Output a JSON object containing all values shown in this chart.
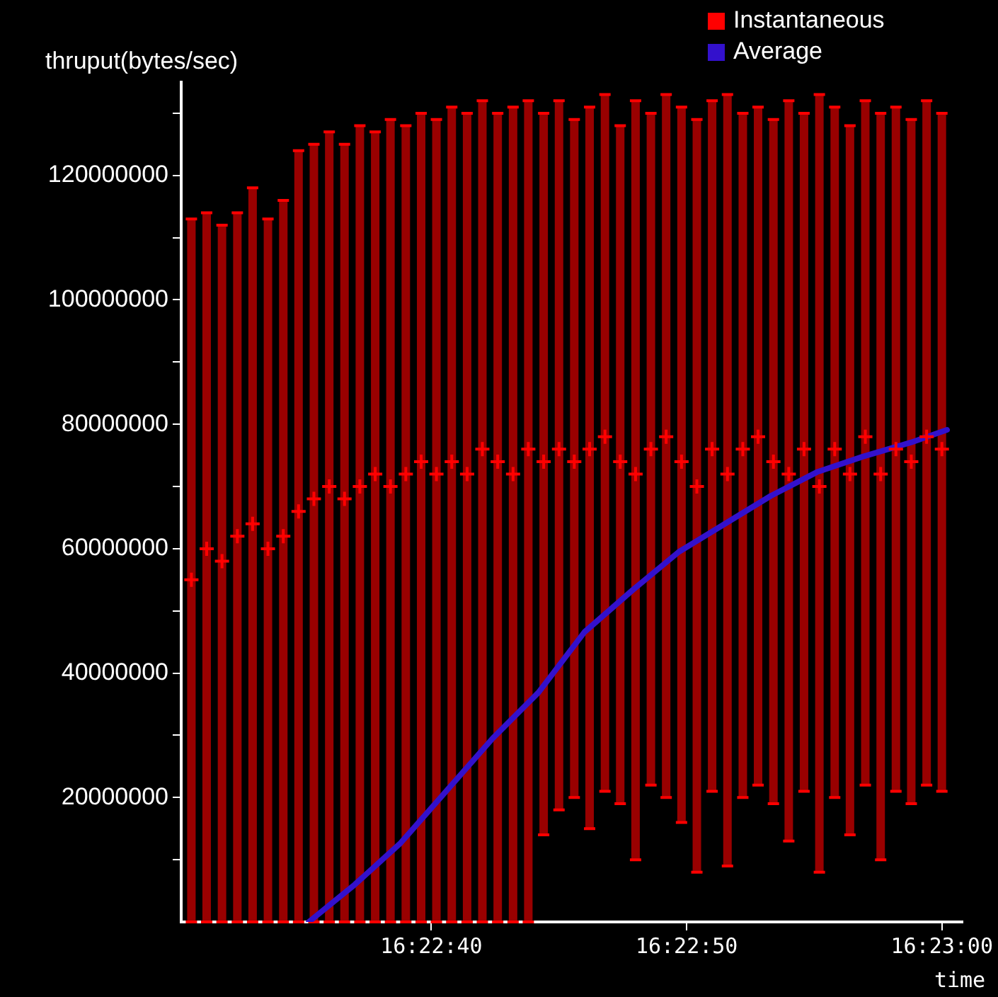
{
  "chart_data": {
    "type": "scatter",
    "xlabel": "time",
    "ylabel": "thruput(bytes/sec)",
    "legend": "top right",
    "grid": false,
    "xlim": [
      16.375056,
      16.383556
    ],
    "xticks": [
      {
        "value": 16.377778,
        "label": "16:22:40"
      },
      {
        "value": 16.380556,
        "label": "16:22:50"
      },
      {
        "value": 16.383333,
        "label": "16:23:00"
      }
    ],
    "ylim": [
      0,
      135000000
    ],
    "yticks": [
      {
        "value": 10000000,
        "label": null
      },
      20000000,
      {
        "value": 30000000,
        "label": null
      },
      40000000,
      {
        "value": 50000000,
        "label": null
      },
      60000000,
      {
        "value": 70000000,
        "label": null
      },
      80000000,
      {
        "value": 90000000,
        "label": null
      },
      100000000,
      {
        "value": 110000000,
        "label": null
      },
      120000000,
      {
        "value": 130000000,
        "label": null
      }
    ],
    "series": [
      {
        "name": "Instantaneous",
        "type": "scatter",
        "color": "#ff0000",
        "marker": "cross",
        "x": [
          16.375167,
          16.375333,
          16.3755,
          16.375667,
          16.375833,
          16.376,
          16.376167,
          16.376333,
          16.3765,
          16.376667,
          16.376833,
          16.377,
          16.377167,
          16.377333,
          16.3775,
          16.377667,
          16.377833,
          16.378,
          16.378167,
          16.378333,
          16.3785,
          16.378667,
          16.378833,
          16.379,
          16.379167,
          16.379333,
          16.3795,
          16.379667,
          16.379833,
          16.38,
          16.380167,
          16.380333,
          16.3805,
          16.380667,
          16.380833,
          16.381,
          16.381167,
          16.381333,
          16.3815,
          16.381667,
          16.381833,
          16.382,
          16.382167,
          16.382333,
          16.3825,
          16.382667,
          16.382833,
          16.383,
          16.383167,
          16.383333
        ],
        "values": [
          55000000,
          60000000,
          58000000,
          62000000,
          64000000,
          60000000,
          62000000,
          66000000,
          68000000,
          70000000,
          68000000,
          70000000,
          72000000,
          70000000,
          72000000,
          74000000,
          72000000,
          74000000,
          72000000,
          76000000,
          74000000,
          72000000,
          76000000,
          74000000,
          76000000,
          74000000,
          76000000,
          78000000,
          74000000,
          72000000,
          76000000,
          78000000,
          74000000,
          70000000,
          76000000,
          72000000,
          76000000,
          78000000,
          74000000,
          72000000,
          76000000,
          70000000,
          76000000,
          72000000,
          78000000,
          72000000,
          76000000,
          74000000,
          78000000,
          76000000
        ],
        "errors": [
          [
            0,
            113000000
          ],
          [
            0,
            114000000
          ],
          [
            0,
            112000000
          ],
          [
            0,
            114000000
          ],
          [
            0,
            118000000
          ],
          [
            0,
            113000000
          ],
          [
            0,
            116000000
          ],
          [
            0,
            124000000
          ],
          [
            0,
            125000000
          ],
          [
            0,
            127000000
          ],
          [
            0,
            125000000
          ],
          [
            0,
            128000000
          ],
          [
            0,
            127000000
          ],
          [
            0,
            129000000
          ],
          [
            0,
            128000000
          ],
          [
            0,
            130000000
          ],
          [
            0,
            129000000
          ],
          [
            0,
            131000000
          ],
          [
            0,
            130000000
          ],
          [
            0,
            132000000
          ],
          [
            0,
            130000000
          ],
          [
            0,
            131000000
          ],
          [
            0,
            132000000
          ],
          [
            14000000,
            130000000
          ],
          [
            18000000,
            132000000
          ],
          [
            20000000,
            129000000
          ],
          [
            15000000,
            131000000
          ],
          [
            21000000,
            133000000
          ],
          [
            19000000,
            128000000
          ],
          [
            10000000,
            132000000
          ],
          [
            22000000,
            130000000
          ],
          [
            20000000,
            133000000
          ],
          [
            16000000,
            131000000
          ],
          [
            8000000,
            129000000
          ],
          [
            21000000,
            132000000
          ],
          [
            9000000,
            133000000
          ],
          [
            20000000,
            130000000
          ],
          [
            22000000,
            131000000
          ],
          [
            19000000,
            129000000
          ],
          [
            13000000,
            132000000
          ],
          [
            21000000,
            130000000
          ],
          [
            8000000,
            133000000
          ],
          [
            20000000,
            131000000
          ],
          [
            14000000,
            128000000
          ],
          [
            22000000,
            132000000
          ],
          [
            10000000,
            130000000
          ],
          [
            21000000,
            131000000
          ],
          [
            19000000,
            129000000
          ],
          [
            22000000,
            132000000
          ],
          [
            21000000,
            130000000
          ]
        ]
      },
      {
        "name": "Average",
        "type": "line",
        "color": "#3311cc",
        "marker": "none",
        "x": [
          16.376444,
          16.376944,
          16.377444,
          16.377944,
          16.378444,
          16.378944,
          16.379444,
          16.379972,
          16.380472,
          16.380972,
          16.381472,
          16.381972,
          16.382472,
          16.383,
          16.383389
        ],
        "values": [
          0,
          6000000,
          12700000,
          21100000,
          29500000,
          36900000,
          46600000,
          53400000,
          59500000,
          64000000,
          68500000,
          72300000,
          74800000,
          77100000,
          79100000
        ]
      }
    ]
  }
}
